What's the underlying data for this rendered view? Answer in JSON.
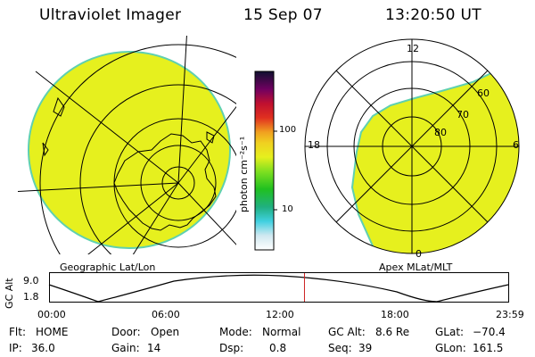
{
  "header": {
    "instrument": "Ultraviolet Imager",
    "date": "15 Sep 07",
    "time": "13:20:50 UT"
  },
  "colors": {
    "fill": "#e6f01e",
    "rim": "#5fd0b0",
    "red_marker": "#cc2020"
  },
  "left_panel": {
    "label": "Geographic Lat/Lon"
  },
  "right_panel": {
    "label": "Apex  MLat/MLT",
    "mlt_labels": [
      "12",
      "18",
      "6",
      "0"
    ],
    "mlat_labels": [
      "60",
      "70",
      "80"
    ]
  },
  "colorbar": {
    "unit_label": "photon cm⁻²s⁻¹",
    "tick_labels": [
      "100",
      "10"
    ]
  },
  "altitude_plot": {
    "axis_title": "GC Alt",
    "y_ticks": [
      "9.0",
      "1.8"
    ],
    "x_ticks": [
      "00:00",
      "06:00",
      "12:00",
      "18:00",
      "23:59"
    ],
    "current_time_hours": 13.35
  },
  "status": {
    "row1": {
      "flt_label": "Flt:",
      "flt_value": "HOME",
      "door_label": "Door:",
      "door_value": "Open",
      "mode_label": "Mode:",
      "mode_value": "Normal",
      "gcalt_label": "GC Alt:",
      "gcalt_value": "8.6 Re",
      "glat_label": "GLat:",
      "glat_value": "−70.4"
    },
    "row2": {
      "ip_label": "IP:",
      "ip_value": "36.0",
      "gain_label": "Gain:",
      "gain_value": "14",
      "dsp_label": "Dsp:",
      "dsp_value": "0.8",
      "seq_label": "Seq:",
      "seq_value": "39",
      "glon_label": "GLon:",
      "glon_value": "161.5"
    }
  }
}
